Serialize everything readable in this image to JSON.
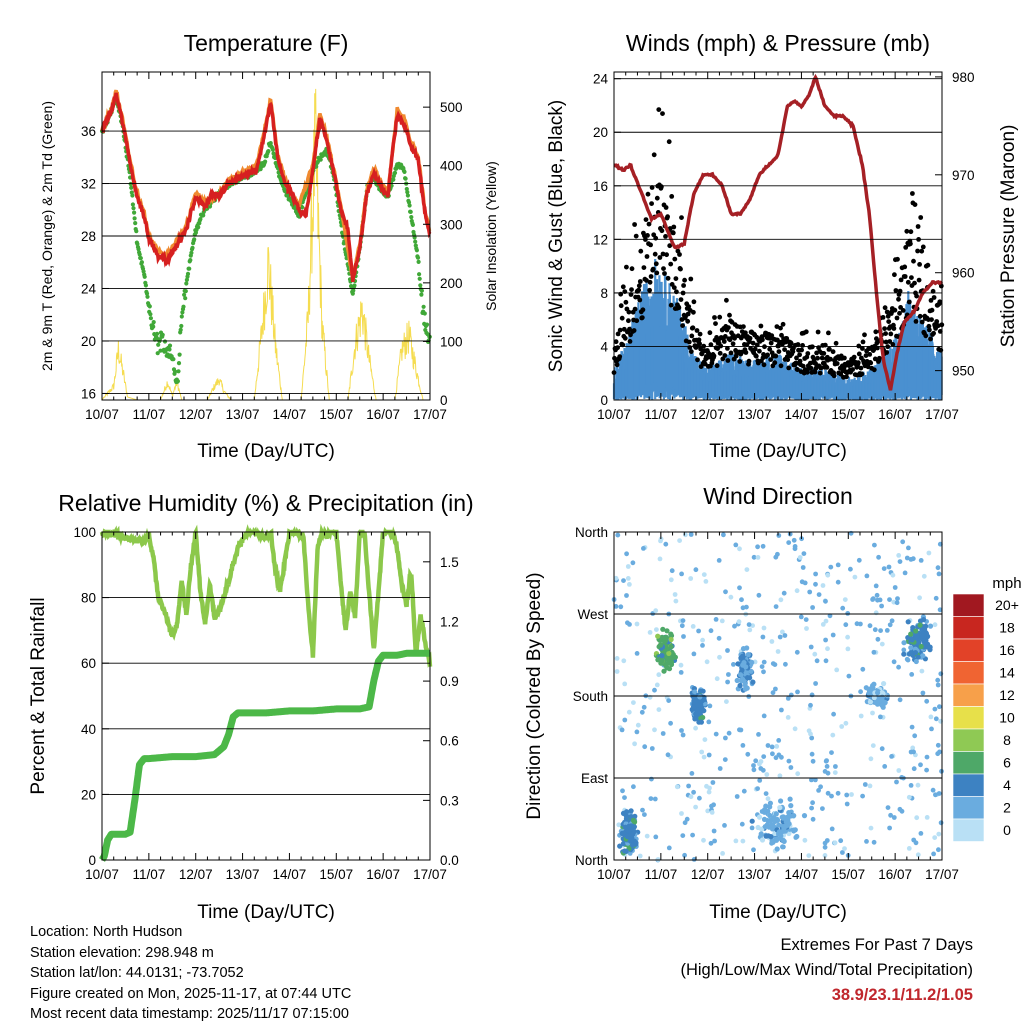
{
  "chart_data": [
    {
      "type": "line",
      "title": "Temperature (F)",
      "xlabel": "Time (Day/UTC)",
      "ylabel": "2m & 9m T (Red, Orange) & 2m Td (Green)",
      "ylabel_right": "Solar Insolation (Yellow)",
      "x_ticks": [
        "10/07",
        "11/07",
        "12/07",
        "13/07",
        "14/07",
        "15/07",
        "16/07",
        "17/07"
      ],
      "ylim": [
        15.5,
        40.5
      ],
      "ylim_right": [
        0,
        560
      ],
      "y_ticks": [
        16,
        20,
        24,
        28,
        32,
        36
      ],
      "y_ticks_right": [
        0,
        100,
        200,
        300,
        400,
        500
      ],
      "grid": true,
      "series": [
        {
          "name": "2m T",
          "color": "#d62020",
          "x": [
            0,
            0.1,
            0.2,
            0.3,
            0.45,
            0.6,
            0.75,
            0.9,
            1.0,
            1.2,
            1.4,
            1.6,
            1.8,
            2.0,
            2.2,
            2.35,
            2.5,
            2.7,
            2.9,
            3.1,
            3.3,
            3.45,
            3.6,
            3.75,
            3.9,
            4.05,
            4.2,
            4.35,
            4.5,
            4.65,
            4.8,
            4.95,
            5.1,
            5.25,
            5.35,
            5.5,
            5.65,
            5.8,
            5.95,
            6.1,
            6.2,
            6.3,
            6.45,
            6.6,
            6.75,
            6.9,
            7.0
          ],
          "values": [
            36.0,
            36.8,
            37.5,
            38.8,
            36.5,
            33.5,
            31.0,
            29.5,
            27.8,
            26.5,
            26.2,
            27.3,
            28.5,
            31.0,
            30.2,
            31.3,
            31.0,
            32.0,
            32.4,
            32.8,
            33.0,
            35.5,
            38.2,
            34.0,
            32.0,
            31.2,
            30.0,
            29.5,
            33.0,
            37.0,
            35.2,
            32.8,
            30.0,
            28.5,
            24.5,
            27.0,
            31.2,
            32.8,
            31.8,
            31.0,
            34.5,
            37.2,
            36.5,
            34.8,
            33.8,
            29.5,
            28.0
          ]
        },
        {
          "name": "9m T",
          "color": "#f08a30",
          "x": [
            0,
            0.2,
            0.3,
            0.45,
            0.6,
            0.75,
            0.9,
            1.0,
            1.2,
            1.4,
            1.6,
            1.8,
            2.0,
            2.2,
            2.5,
            2.7,
            2.9,
            3.1,
            3.3,
            3.45,
            3.6,
            3.75,
            3.9,
            4.2,
            4.5,
            4.65,
            4.8,
            4.95,
            5.1,
            5.35,
            5.5,
            5.65,
            5.8,
            5.95,
            6.1,
            6.3,
            6.45,
            6.6,
            6.75,
            6.9,
            7.0
          ],
          "values": [
            36.2,
            37.7,
            39.0,
            36.7,
            33.8,
            31.2,
            29.7,
            28.0,
            26.8,
            26.5,
            27.6,
            28.8,
            31.3,
            30.5,
            31.2,
            32.3,
            32.6,
            33.0,
            33.3,
            35.8,
            38.5,
            34.2,
            32.3,
            30.3,
            33.4,
            37.4,
            35.5,
            33.0,
            30.2,
            24.8,
            27.3,
            31.5,
            33.2,
            32.1,
            31.3,
            37.6,
            36.9,
            35.1,
            34.0,
            29.8,
            28.3
          ]
        },
        {
          "name": "2m Td",
          "color": "#40a838",
          "x": [
            0,
            0.2,
            0.3,
            0.45,
            0.6,
            0.75,
            0.9,
            1.0,
            1.15,
            1.3,
            1.5,
            1.6,
            1.7,
            1.85,
            2.0,
            2.2,
            2.5,
            2.7,
            2.9,
            3.1,
            3.3,
            3.45,
            3.6,
            3.75,
            3.9,
            4.2,
            4.5,
            4.65,
            4.8,
            4.95,
            5.1,
            5.35,
            5.5,
            5.65,
            5.8,
            5.95,
            6.1,
            6.3,
            6.45,
            6.6,
            6.75,
            6.9,
            7.0
          ],
          "values": [
            36.0,
            37.5,
            38.6,
            36.2,
            32.5,
            27.5,
            25.0,
            22.5,
            20.0,
            19.8,
            19.0,
            16.5,
            22.0,
            25.5,
            28.5,
            30.0,
            31.3,
            32.0,
            32.3,
            32.7,
            33.0,
            33.5,
            35.2,
            33.0,
            31.5,
            29.5,
            33.0,
            34.0,
            34.5,
            32.5,
            29.0,
            23.5,
            27.0,
            31.5,
            32.5,
            31.5,
            31.0,
            33.5,
            33.0,
            29.5,
            26.0,
            21.0,
            19.5
          ]
        },
        {
          "name": "Solar Insolation",
          "color": "#f5dc50",
          "axis": "right",
          "x": [
            0,
            0.25,
            0.35,
            0.45,
            0.55,
            0.75,
            1.25,
            1.4,
            1.5,
            1.6,
            1.7,
            2.25,
            2.4,
            2.5,
            2.6,
            2.75,
            3.25,
            3.4,
            3.55,
            3.7,
            3.85,
            4.25,
            4.4,
            4.55,
            4.7,
            4.85,
            5.25,
            5.4,
            5.55,
            5.7,
            5.85,
            6.25,
            6.4,
            6.55,
            6.7,
            6.85,
            7.0
          ],
          "values": [
            0,
            30,
            110,
            60,
            5,
            0,
            0,
            40,
            10,
            40,
            0,
            0,
            30,
            45,
            20,
            0,
            0,
            140,
            300,
            120,
            0,
            0,
            180,
            560,
            160,
            0,
            0,
            120,
            200,
            90,
            0,
            0,
            110,
            140,
            70,
            0,
            0
          ]
        }
      ]
    },
    {
      "type": "scatter",
      "title": "Winds (mph) & Pressure (mb)",
      "xlabel": "Time (Day/UTC)",
      "ylabel": "Sonic Wind & Gust (Blue, Black)",
      "ylabel_right": "Station Pressure (Maroon)",
      "x_ticks": [
        "10/07",
        "11/07",
        "12/07",
        "13/07",
        "14/07",
        "15/07",
        "16/07",
        "17/07"
      ],
      "ylim": [
        0,
        24.5
      ],
      "ylim_right": [
        947,
        980.5
      ],
      "y_ticks": [
        0,
        4,
        8,
        12,
        16,
        20,
        24
      ],
      "y_ticks_right": [
        950,
        960,
        970,
        980
      ],
      "grid": true,
      "series": [
        {
          "name": "Station Pressure",
          "color": "#a52025",
          "axis": "right",
          "x": [
            0,
            0.2,
            0.35,
            0.6,
            0.8,
            1.0,
            1.3,
            1.5,
            1.7,
            1.9,
            2.1,
            2.3,
            2.5,
            2.7,
            2.9,
            3.1,
            3.3,
            3.5,
            3.7,
            3.85,
            4.0,
            4.15,
            4.3,
            4.5,
            4.7,
            4.9,
            5.1,
            5.3,
            5.45,
            5.6,
            5.75,
            5.9,
            6.05,
            6.2,
            6.4,
            6.6,
            6.8,
            7.0
          ],
          "values": [
            971,
            970.5,
            971,
            968,
            965.5,
            966,
            962.5,
            963,
            968,
            970,
            970,
            969,
            966,
            966,
            967.5,
            970,
            971,
            972,
            977,
            977.5,
            977,
            978,
            980,
            977,
            976,
            976,
            975,
            971,
            966,
            958,
            951,
            948,
            952,
            955,
            956,
            958,
            959,
            959
          ]
        },
        {
          "name": "Sonic Wind (Blue) envelope",
          "color": "#4a90d0",
          "x": [
            0,
            0.3,
            0.6,
            0.9,
            1.1,
            1.4,
            1.7,
            2.0,
            2.5,
            3.0,
            3.5,
            4.0,
            4.5,
            5.0,
            5.5,
            6.0,
            6.3,
            6.6,
            7.0
          ],
          "values": [
            2,
            4,
            7,
            9,
            8,
            6,
            3,
            2,
            3,
            2.5,
            3,
            2,
            2,
            1.5,
            2,
            4,
            7,
            5,
            3
          ]
        },
        {
          "name": "Gust (Black) envelope",
          "color": "#000000",
          "x": [
            0,
            0.3,
            0.6,
            0.9,
            1.1,
            1.4,
            1.7,
            2.0,
            2.5,
            3.0,
            3.5,
            4.0,
            4.5,
            5.0,
            5.5,
            6.0,
            6.3,
            6.6,
            7.0
          ],
          "values": [
            4,
            8,
            12,
            18,
            16,
            11,
            6,
            4,
            6,
            5,
            5,
            4,
            4,
            3,
            4,
            8,
            13,
            10,
            7
          ]
        }
      ]
    },
    {
      "type": "line",
      "title": "Relative Humidity (%) & Precipitation (in)",
      "xlabel": "Time (Day/UTC)",
      "ylabel": "Percent & Total Rainfall",
      "x_ticks": [
        "10/07",
        "11/07",
        "12/07",
        "13/07",
        "14/07",
        "15/07",
        "16/07",
        "17/07"
      ],
      "ylim": [
        0,
        100
      ],
      "ylim_right": [
        0,
        1.65
      ],
      "y_ticks": [
        0,
        20,
        40,
        60,
        80,
        100
      ],
      "y_ticks_right": [
        "0.0",
        "0.3",
        "0.6",
        "0.9",
        "1.2",
        "1.5"
      ],
      "grid": true,
      "series": [
        {
          "name": "Relative Humidity",
          "color": "#8cc84b",
          "x": [
            0,
            0.3,
            0.6,
            0.9,
            1.0,
            1.1,
            1.2,
            1.35,
            1.5,
            1.6,
            1.7,
            1.8,
            1.9,
            2.0,
            2.1,
            2.2,
            2.3,
            2.4,
            2.5,
            2.7,
            2.9,
            3.1,
            3.3,
            3.5,
            3.6,
            3.7,
            3.8,
            4.0,
            4.1,
            4.2,
            4.3,
            4.4,
            4.5,
            4.6,
            4.7,
            4.8,
            4.9,
            5.0,
            5.1,
            5.2,
            5.3,
            5.4,
            5.5,
            5.6,
            5.8,
            6.0,
            6.1,
            6.2,
            6.3,
            6.4,
            6.5,
            6.6,
            6.7,
            6.8,
            6.9,
            7.0
          ],
          "values": [
            100,
            99,
            98,
            97,
            99,
            92,
            80,
            75,
            68,
            72,
            85,
            75,
            90,
            100,
            82,
            72,
            84,
            74,
            76,
            85,
            95,
            100,
            100,
            98,
            100,
            88,
            82,
            100,
            100,
            100,
            98,
            78,
            62,
            95,
            100,
            99,
            100,
            100,
            84,
            70,
            82,
            74,
            100,
            100,
            64,
            100,
            100,
            100,
            95,
            84,
            78,
            88,
            62,
            75,
            66,
            60
          ]
        },
        {
          "name": "Total Precipitation",
          "color": "#4cb848",
          "axis": "right",
          "x": [
            0,
            0.05,
            0.12,
            0.2,
            0.5,
            0.6,
            0.7,
            0.8,
            0.9,
            1.0,
            1.5,
            2.0,
            2.4,
            2.6,
            2.7,
            2.8,
            2.9,
            3.0,
            3.3,
            3.5,
            4.0,
            4.5,
            5.0,
            5.5,
            5.7,
            5.8,
            5.9,
            6.0,
            6.3,
            6.5,
            7.0
          ],
          "values": [
            0,
            0.02,
            0.1,
            0.13,
            0.13,
            0.14,
            0.3,
            0.48,
            0.51,
            0.51,
            0.52,
            0.52,
            0.53,
            0.57,
            0.63,
            0.72,
            0.74,
            0.74,
            0.74,
            0.74,
            0.75,
            0.75,
            0.76,
            0.76,
            0.77,
            0.9,
            1.0,
            1.03,
            1.03,
            1.04,
            1.04
          ]
        }
      ]
    },
    {
      "type": "scatter",
      "title": "Wind Direction",
      "xlabel": "Time (Day/UTC)",
      "ylabel": "Direction (Colored By Speed)",
      "x_ticks": [
        "10/07",
        "11/07",
        "12/07",
        "13/07",
        "14/07",
        "15/07",
        "16/07",
        "17/07"
      ],
      "y_ticks": [
        "North",
        "East",
        "South",
        "West",
        "North"
      ],
      "ylim": [
        0,
        360
      ],
      "grid": true,
      "colorbar_title": "mph",
      "colorbar_labels": [
        "20+",
        "18",
        "16",
        "14",
        "12",
        "10",
        "8",
        "6",
        "4",
        "2",
        "0"
      ],
      "colorbar_colors": [
        "#a11820",
        "#c8261f",
        "#e24228",
        "#f06432",
        "#f7a04a",
        "#e7e04a",
        "#8fc954",
        "#4ea868",
        "#3d82c2",
        "#6aacdf",
        "#b9e0f5"
      ],
      "clusters": [
        {
          "x": 0.3,
          "dir": 30,
          "spread_x": 0.25,
          "spread_dir": 30,
          "speed": 4
        },
        {
          "x": 1.1,
          "dir": 230,
          "spread_x": 0.3,
          "spread_dir": 30,
          "speed": 6
        },
        {
          "x": 1.8,
          "dir": 170,
          "spread_x": 0.2,
          "spread_dir": 25,
          "speed": 4
        },
        {
          "x": 2.8,
          "dir": 210,
          "spread_x": 0.2,
          "spread_dir": 30,
          "speed": 3
        },
        {
          "x": 3.5,
          "dir": 40,
          "spread_x": 0.6,
          "spread_dir": 35,
          "speed": 2
        },
        {
          "x": 5.6,
          "dir": 180,
          "spread_x": 0.3,
          "spread_dir": 15,
          "speed": 2
        },
        {
          "x": 6.5,
          "dir": 240,
          "spread_x": 0.4,
          "spread_dir": 30,
          "speed": 4
        }
      ]
    }
  ],
  "info": {
    "location": "Location: North Hudson",
    "elevation": "Station elevation: 298.948 m",
    "latlon": "Station lat/lon: 44.0131; -73.7052",
    "created": "Figure created on Mon, 2025-11-17, at 07:44 UTC",
    "recent": "Most recent data timestamp: 2025/11/17 07:15:00"
  },
  "extremes": {
    "title": "Extremes For Past 7 Days",
    "subtitle": "(High/Low/Max Wind/Total Precipitation)",
    "values": "38.9/23.1/11.2/1.05"
  }
}
